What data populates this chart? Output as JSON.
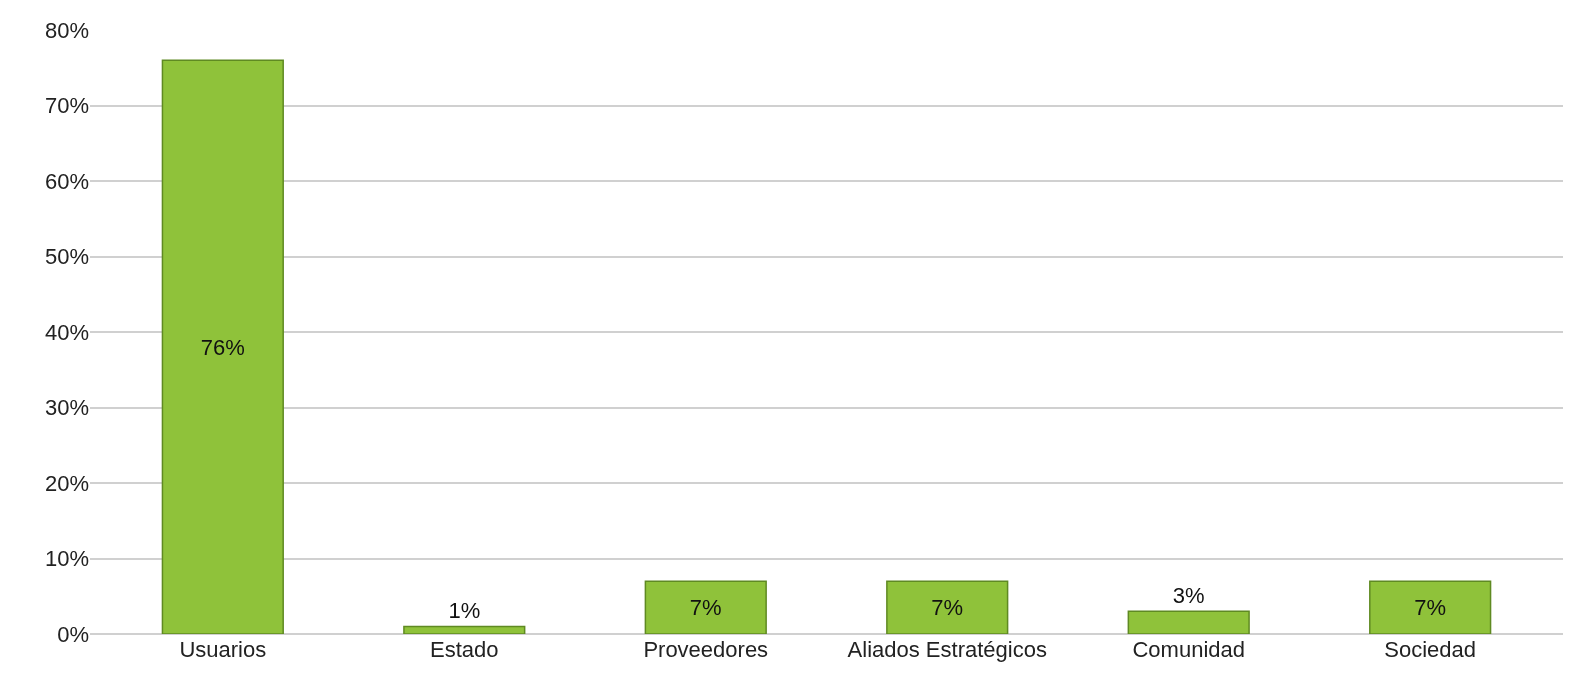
{
  "chart_data": {
    "type": "bar",
    "categories": [
      "Usuarios",
      "Estado",
      "Proveedores",
      "Aliados Estratégicos",
      "Comunidad",
      "Sociedad"
    ],
    "values": [
      76,
      1,
      7,
      7,
      3,
      7
    ],
    "value_labels": [
      "76%",
      "1%",
      "7%",
      "7%",
      "3%",
      "7%"
    ],
    "color": "#8fc23a",
    "ylim": [
      0,
      80
    ],
    "yticks": [
      {
        "value": 0,
        "label": "0%"
      },
      {
        "value": 10,
        "label": "10%"
      },
      {
        "value": 20,
        "label": "20%"
      },
      {
        "value": 30,
        "label": "30%"
      },
      {
        "value": 40,
        "label": "40%"
      },
      {
        "value": 50,
        "label": "50%"
      },
      {
        "value": 60,
        "label": "60%"
      },
      {
        "value": 70,
        "label": "70%"
      },
      {
        "value": 80,
        "label": "80%"
      }
    ],
    "grid": "y"
  }
}
